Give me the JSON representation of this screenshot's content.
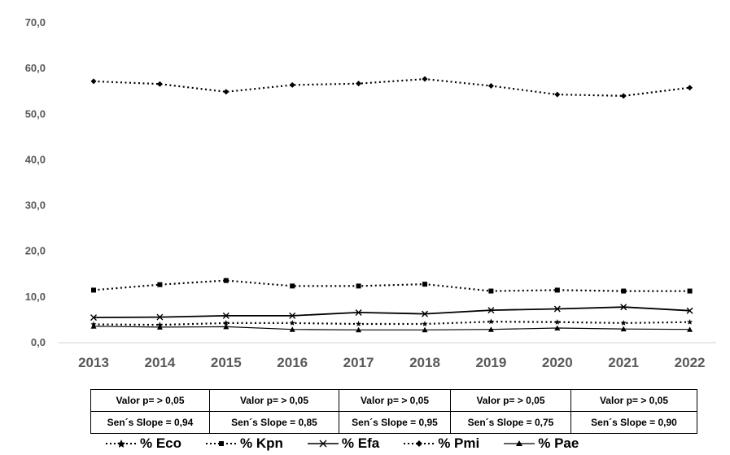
{
  "chart_data": {
    "type": "line",
    "x": [
      "2013",
      "2014",
      "2015",
      "2016",
      "2017",
      "2018",
      "2019",
      "2020",
      "2021",
      "2022"
    ],
    "y_ticks": [
      "0,0",
      "10,0",
      "20,0",
      "30,0",
      "40,0",
      "50,0",
      "60,0",
      "70,0"
    ],
    "ylim": [
      0,
      70
    ],
    "grid": false,
    "legend_position": "bottom",
    "series": [
      {
        "name": "% Eco",
        "style": "dotted",
        "marker": "star",
        "values": [
          4.0,
          3.9,
          4.3,
          4.3,
          4.1,
          4.1,
          4.6,
          4.5,
          4.3,
          4.5
        ]
      },
      {
        "name": "% Kpn",
        "style": "dotted",
        "marker": "square",
        "values": [
          11.5,
          12.7,
          13.6,
          12.4,
          12.4,
          12.8,
          11.3,
          11.5,
          11.3,
          11.3
        ]
      },
      {
        "name": "% Efa",
        "style": "solid",
        "marker": "x",
        "values": [
          5.5,
          5.6,
          5.9,
          5.9,
          6.6,
          6.3,
          7.1,
          7.4,
          7.8,
          7.0
        ]
      },
      {
        "name": "% Pmi",
        "style": "dotted",
        "marker": "diamond",
        "values": [
          57.2,
          56.6,
          54.9,
          56.4,
          56.7,
          57.7,
          56.2,
          54.3,
          54.0,
          55.8
        ]
      },
      {
        "name": "% Pae",
        "style": "solid",
        "marker": "triangle",
        "values": [
          3.6,
          3.4,
          3.5,
          2.9,
          2.8,
          2.8,
          2.9,
          3.2,
          3.0,
          2.9
        ]
      }
    ]
  },
  "stats_table": {
    "rows": [
      [
        "Valor p= > 0,05",
        "Valor p= > 0,05",
        "Valor p= > 0,05",
        "Valor p= > 0,05",
        "Valor p= > 0,05"
      ],
      [
        "Sen´s Slope = 0,94",
        "Sen´s Slope = 0,85",
        "Sen´s Slope = 0,95",
        "Sen´s Slope = 0,75",
        "Sen´s Slope = 0,90"
      ]
    ]
  }
}
